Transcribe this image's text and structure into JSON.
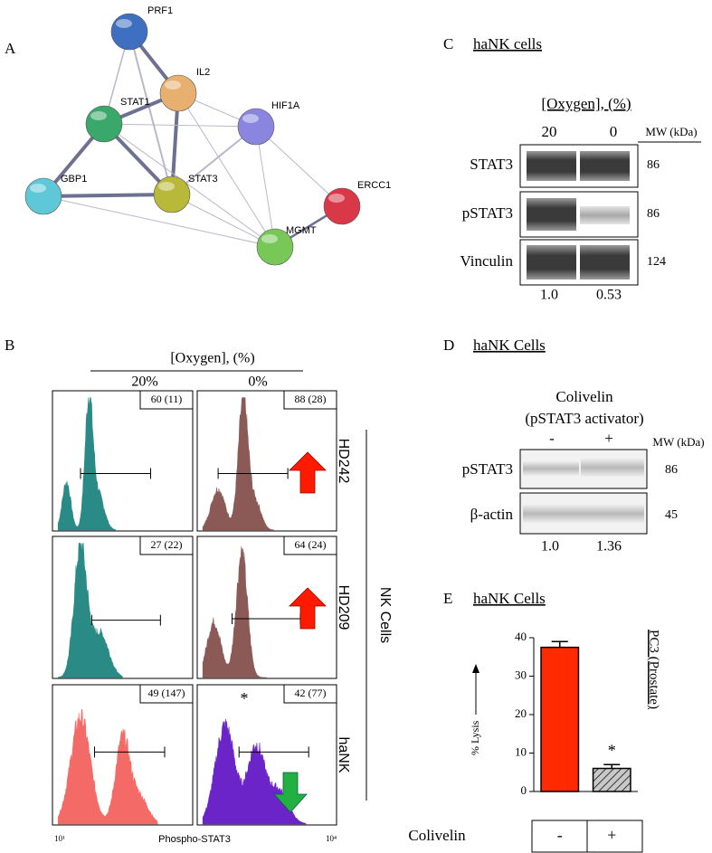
{
  "panels": {
    "A": {
      "label": "A",
      "nodes": [
        "PRF1",
        "IL2",
        "STAT1",
        "HIF1A",
        "GBP1",
        "STAT3",
        "ERCC1",
        "MGMT"
      ]
    },
    "B": {
      "label": "B",
      "header": "[Oxygen], (%)",
      "columns": [
        "20%",
        "0%"
      ],
      "rows": [
        {
          "name": "HD242",
          "stats": [
            "60 (11)",
            "88 (28)"
          ]
        },
        {
          "name": "HD209",
          "stats": [
            "27 (22)",
            "64 (24)"
          ]
        },
        {
          "name": "haNK",
          "stats": [
            "49 (147)",
            "42 (77)"
          ]
        }
      ],
      "group": "NK Cells",
      "asterisk": "*",
      "x_axis": "Phospho-STAT3",
      "x_min": "10¹",
      "x_max": "10⁴"
    },
    "C": {
      "label": "C",
      "title": "haNK cells",
      "header": "[Oxygen], (%)",
      "lanes": [
        "20",
        "0"
      ],
      "mw_header": "MW (kDa)",
      "rows": [
        {
          "name": "STAT3",
          "mw": "86"
        },
        {
          "name": "pSTAT3",
          "mw": "86"
        },
        {
          "name": "Vinculin",
          "mw": "124"
        }
      ],
      "ratios": [
        "1.0",
        "0.53"
      ]
    },
    "D": {
      "label": "D",
      "title": "haNK Cells",
      "header": "Colivelin",
      "subheader": "(pSTAT3 activator)",
      "lanes": [
        "-",
        "+"
      ],
      "mw_header": "MW (kDa)",
      "rows": [
        {
          "name": "pSTAT3",
          "mw": "86"
        },
        {
          "name": "β-actin",
          "mw": "45"
        }
      ],
      "ratios": [
        "1.0",
        "1.36"
      ]
    }
  },
  "chart_data": {
    "type": "bar",
    "panel_label": "E",
    "title": "haNK Cells",
    "y_label": "% Lysis",
    "side_label": "PC3 (Prostate)",
    "category_title": "Colivelin",
    "categories": [
      "-",
      "+"
    ],
    "values": [
      37.5,
      6
    ],
    "errors": [
      1.5,
      1
    ],
    "colors": [
      "#ff2a00",
      "#a8a8a8"
    ],
    "hatch": [
      false,
      true
    ],
    "annotation": "*",
    "ylim": [
      0,
      40
    ],
    "yticks": [
      0,
      10,
      20,
      30,
      40
    ]
  }
}
